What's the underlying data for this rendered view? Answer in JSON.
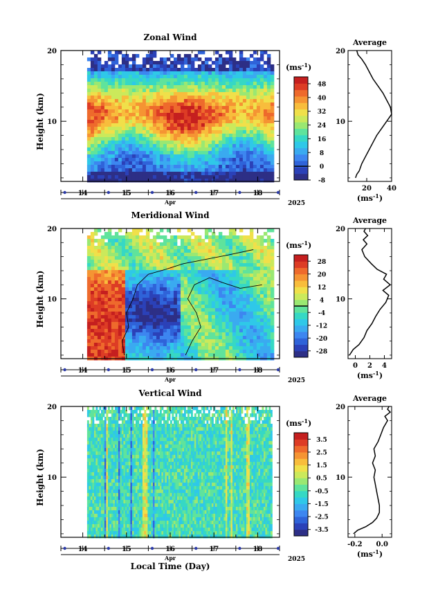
{
  "colors": {
    "zonal_scale": [
      "#2d2f86",
      "#2b41b8",
      "#2f63d9",
      "#3d86f0",
      "#3aaaf0",
      "#2fc8e8",
      "#36d8c4",
      "#5fe39c",
      "#9ae872",
      "#cbe95b",
      "#f0e04a",
      "#f8bd3c",
      "#f59433",
      "#ee6a2c",
      "#dd3c25",
      "#c51f1f"
    ],
    "diverge_scale": [
      "#2d2f86",
      "#2b41b8",
      "#2f63d9",
      "#3d86f0",
      "#3aaaf0",
      "#2fc8e8",
      "#36d8c4",
      "#5fe39c",
      "#9ae872",
      "#cbe95b",
      "#f0e04a",
      "#f8bd3c",
      "#f59433",
      "#ee6a2c",
      "#dd3c25",
      "#c51f1f"
    ],
    "contour": "#000000",
    "date_marker": "#2b3aa8"
  },
  "chart_data": [
    {
      "id": "zonal",
      "type": "heatmap",
      "title": "Zonal Wind",
      "ylabel": "Height (km)",
      "xlabel": "Apr",
      "year_label": "2025",
      "x_ticks": [
        "14",
        "15",
        "16",
        "17",
        "18"
      ],
      "y_ticks": [
        "20",
        "10"
      ],
      "xlim": [
        13.5,
        18.5
      ],
      "ylim": [
        1.5,
        20
      ],
      "data_xlim": [
        14.1,
        18.3
      ],
      "colorbar": {
        "unit": "(ms",
        "unit_exp": "-1",
        "unit_close": ")",
        "ticks": [
          "48",
          "40",
          "32",
          "24",
          "16",
          "8",
          "0",
          "-8"
        ],
        "range": [
          -8,
          52
        ],
        "zero_line_value": 0
      },
      "profile": {
        "title": "Average",
        "x_ticks": [
          "20",
          "40"
        ],
        "x_tick_values": [
          20,
          40
        ],
        "xlim": [
          5,
          40
        ],
        "unit": "(ms",
        "unit_exp": "-1",
        "unit_close": ")",
        "points": [
          [
            11,
            2
          ],
          [
            12,
            2.5
          ],
          [
            14,
            3
          ],
          [
            16,
            4
          ],
          [
            19,
            5
          ],
          [
            22,
            6
          ],
          [
            25,
            7
          ],
          [
            28,
            8
          ],
          [
            32,
            9
          ],
          [
            36,
            10
          ],
          [
            40,
            11
          ],
          [
            39,
            12
          ],
          [
            36,
            13
          ],
          [
            33,
            14
          ],
          [
            29,
            15
          ],
          [
            25,
            16
          ],
          [
            22,
            17
          ],
          [
            19,
            18
          ],
          [
            16,
            18.8
          ],
          [
            13,
            19.4
          ],
          [
            12,
            20
          ]
        ]
      }
    },
    {
      "id": "meridional",
      "type": "heatmap",
      "title": "Meridional Wind",
      "ylabel": "Height (km)",
      "xlabel": "Apr",
      "year_label": "2025",
      "x_ticks": [
        "14",
        "15",
        "16",
        "17",
        "18"
      ],
      "y_ticks": [
        "20",
        "10"
      ],
      "xlim": [
        13.5,
        18.5
      ],
      "ylim": [
        1.5,
        20
      ],
      "data_xlim": [
        14.1,
        18.3
      ],
      "colorbar": {
        "unit": "(ms",
        "unit_exp": "-1",
        "unit_close": ")",
        "ticks": [
          "28",
          "20",
          "12",
          "4",
          "-4",
          "-12",
          "-20",
          "-28"
        ],
        "range": [
          -32,
          32
        ],
        "zero_line_value": 0
      },
      "profile": {
        "title": "Average",
        "x_ticks": [
          "0",
          "2",
          "4"
        ],
        "x_tick_values": [
          0,
          2,
          4
        ],
        "xlim": [
          -1,
          5
        ],
        "unit": "(ms",
        "unit_exp": "-1",
        "unit_close": ")",
        "points": [
          [
            -0.8,
            2
          ],
          [
            -0.3,
            2.8
          ],
          [
            0.5,
            3.5
          ],
          [
            1.2,
            4.5
          ],
          [
            1.6,
            5.5
          ],
          [
            2.3,
            6.5
          ],
          [
            2.8,
            7.5
          ],
          [
            3.4,
            8.5
          ],
          [
            4.2,
            9.5
          ],
          [
            4.6,
            10.5
          ],
          [
            3.8,
            11.2
          ],
          [
            4.8,
            12
          ],
          [
            3.9,
            12.8
          ],
          [
            4.3,
            13.5
          ],
          [
            3,
            14.2
          ],
          [
            2.2,
            15
          ],
          [
            1.3,
            16
          ],
          [
            0.9,
            17
          ],
          [
            1.6,
            17.8
          ],
          [
            1.1,
            18.4
          ],
          [
            1.7,
            19
          ],
          [
            1.2,
            19.6
          ],
          [
            1.4,
            20
          ]
        ]
      }
    },
    {
      "id": "vertical",
      "type": "heatmap",
      "title": "Vertical Wind",
      "ylabel": "Height (km)",
      "xlabel": "Apr",
      "year_label": "2025",
      "x_ticks": [
        "14",
        "15",
        "16",
        "17",
        "18"
      ],
      "y_ticks": [
        "20",
        "10"
      ],
      "xlim": [
        13.5,
        18.5
      ],
      "ylim": [
        1.5,
        20
      ],
      "data_xlim": [
        14.1,
        18.3
      ],
      "colorbar": {
        "unit": "(ms",
        "unit_exp": "-1",
        "unit_close": ")",
        "ticks": [
          "3.5",
          "2.5",
          "1.5",
          "0.5",
          "-0.5",
          "-1.5",
          "-2.5",
          "-3.5"
        ],
        "range": [
          -4,
          4
        ],
        "zero_line_value": null
      },
      "profile": {
        "title": "Average",
        "x_ticks": [
          "-0.2",
          "0.0"
        ],
        "x_tick_values": [
          -0.2,
          0.0
        ],
        "xlim": [
          -0.25,
          0.07
        ],
        "unit": "(ms",
        "unit_exp": "-1",
        "unit_close": ")",
        "points": [
          [
            -0.21,
            2
          ],
          [
            -0.18,
            2.5
          ],
          [
            -0.12,
            3
          ],
          [
            -0.07,
            3.6
          ],
          [
            -0.04,
            4.2
          ],
          [
            -0.02,
            5
          ],
          [
            -0.02,
            6
          ],
          [
            -0.03,
            7
          ],
          [
            -0.04,
            8
          ],
          [
            -0.05,
            9
          ],
          [
            -0.06,
            10
          ],
          [
            -0.05,
            11
          ],
          [
            -0.07,
            12
          ],
          [
            -0.05,
            13
          ],
          [
            -0.06,
            14
          ],
          [
            -0.03,
            15
          ],
          [
            -0.01,
            16
          ],
          [
            0.01,
            17
          ],
          [
            0.04,
            18
          ],
          [
            0.02,
            18.6
          ],
          [
            0.06,
            19.2
          ],
          [
            0.04,
            19.6
          ],
          [
            0.05,
            20
          ]
        ]
      }
    }
  ],
  "footer": {
    "xlabel": "Local Time (Day)"
  }
}
